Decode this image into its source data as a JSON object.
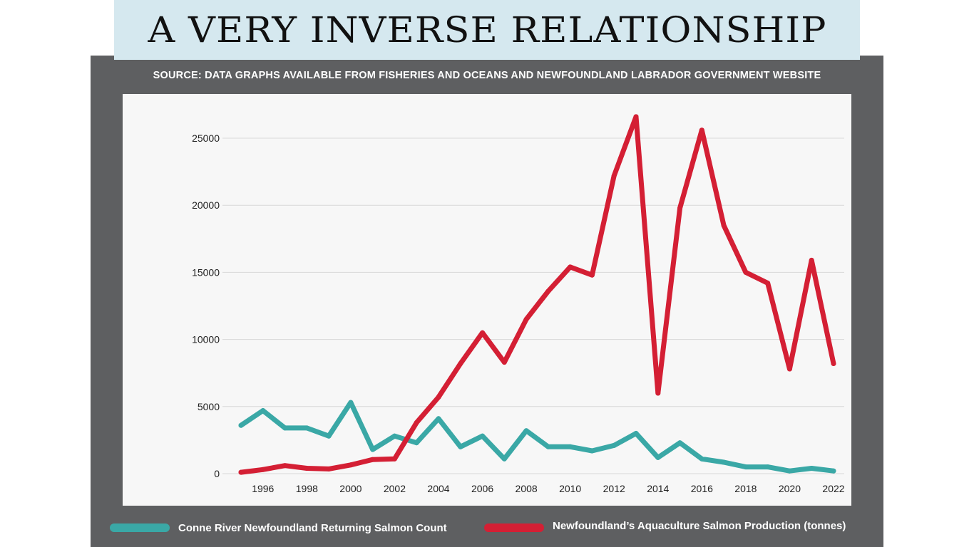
{
  "title": "A VERY INVERSE RELATIONSHIP",
  "source": "SOURCE: DATA GRAPHS AVAILABLE FROM FISHERIES AND OCEANS AND NEWFOUNDLAND LABRADOR GOVERNMENT WEBSITE",
  "colors": {
    "background_panel": "#5e5f61",
    "title_banner": "#d5e8ef",
    "chart_bg": "#f7f7f7",
    "series_salmon_count": "#3aa8a6",
    "series_aquaculture": "#d41f34"
  },
  "legend": [
    {
      "label": "Conne River Newfoundland Returning Salmon Count",
      "color": "#3aa8a6"
    },
    {
      "label": "Newfoundland’s Aquaculture Salmon Production (tonnes)",
      "color": "#d41f34"
    }
  ],
  "chart_data": {
    "type": "line",
    "title": "A VERY INVERSE RELATIONSHIP",
    "xlabel": "",
    "ylabel": "",
    "xlim": [
      1995,
      2022
    ],
    "ylim": [
      0,
      27000
    ],
    "yticks": [
      0,
      5000,
      10000,
      15000,
      20000,
      25000
    ],
    "xticks": [
      1996,
      1998,
      2000,
      2002,
      2004,
      2006,
      2008,
      2010,
      2012,
      2014,
      2016,
      2018,
      2020,
      2022
    ],
    "x": [
      1995,
      1996,
      1997,
      1998,
      1999,
      2000,
      2001,
      2002,
      2003,
      2004,
      2005,
      2006,
      2007,
      2008,
      2009,
      2010,
      2011,
      2012,
      2013,
      2014,
      2015,
      2016,
      2017,
      2018,
      2019,
      2020,
      2021,
      2022
    ],
    "series": [
      {
        "name": "Conne River Newfoundland Returning Salmon Count",
        "color": "#3aa8a6",
        "values": [
          3600,
          4700,
          3400,
          3400,
          2800,
          5300,
          1800,
          2800,
          2300,
          4100,
          2000,
          2800,
          1100,
          3200,
          2000,
          2000,
          1700,
          2100,
          3000,
          1200,
          2300,
          1100,
          850,
          500,
          500,
          200,
          400,
          200
        ]
      },
      {
        "name": "Newfoundland’s Aquaculture Salmon Production (tonnes)",
        "color": "#d41f34",
        "values": [
          100,
          300,
          600,
          400,
          350,
          650,
          1050,
          1100,
          3800,
          5700,
          8200,
          10500,
          8300,
          11500,
          13600,
          15400,
          14800,
          22200,
          26600,
          6000,
          19800,
          25600,
          18500,
          15000,
          14200,
          7800,
          15900,
          8200
        ]
      }
    ],
    "grid": true,
    "legend_position": "bottom"
  }
}
